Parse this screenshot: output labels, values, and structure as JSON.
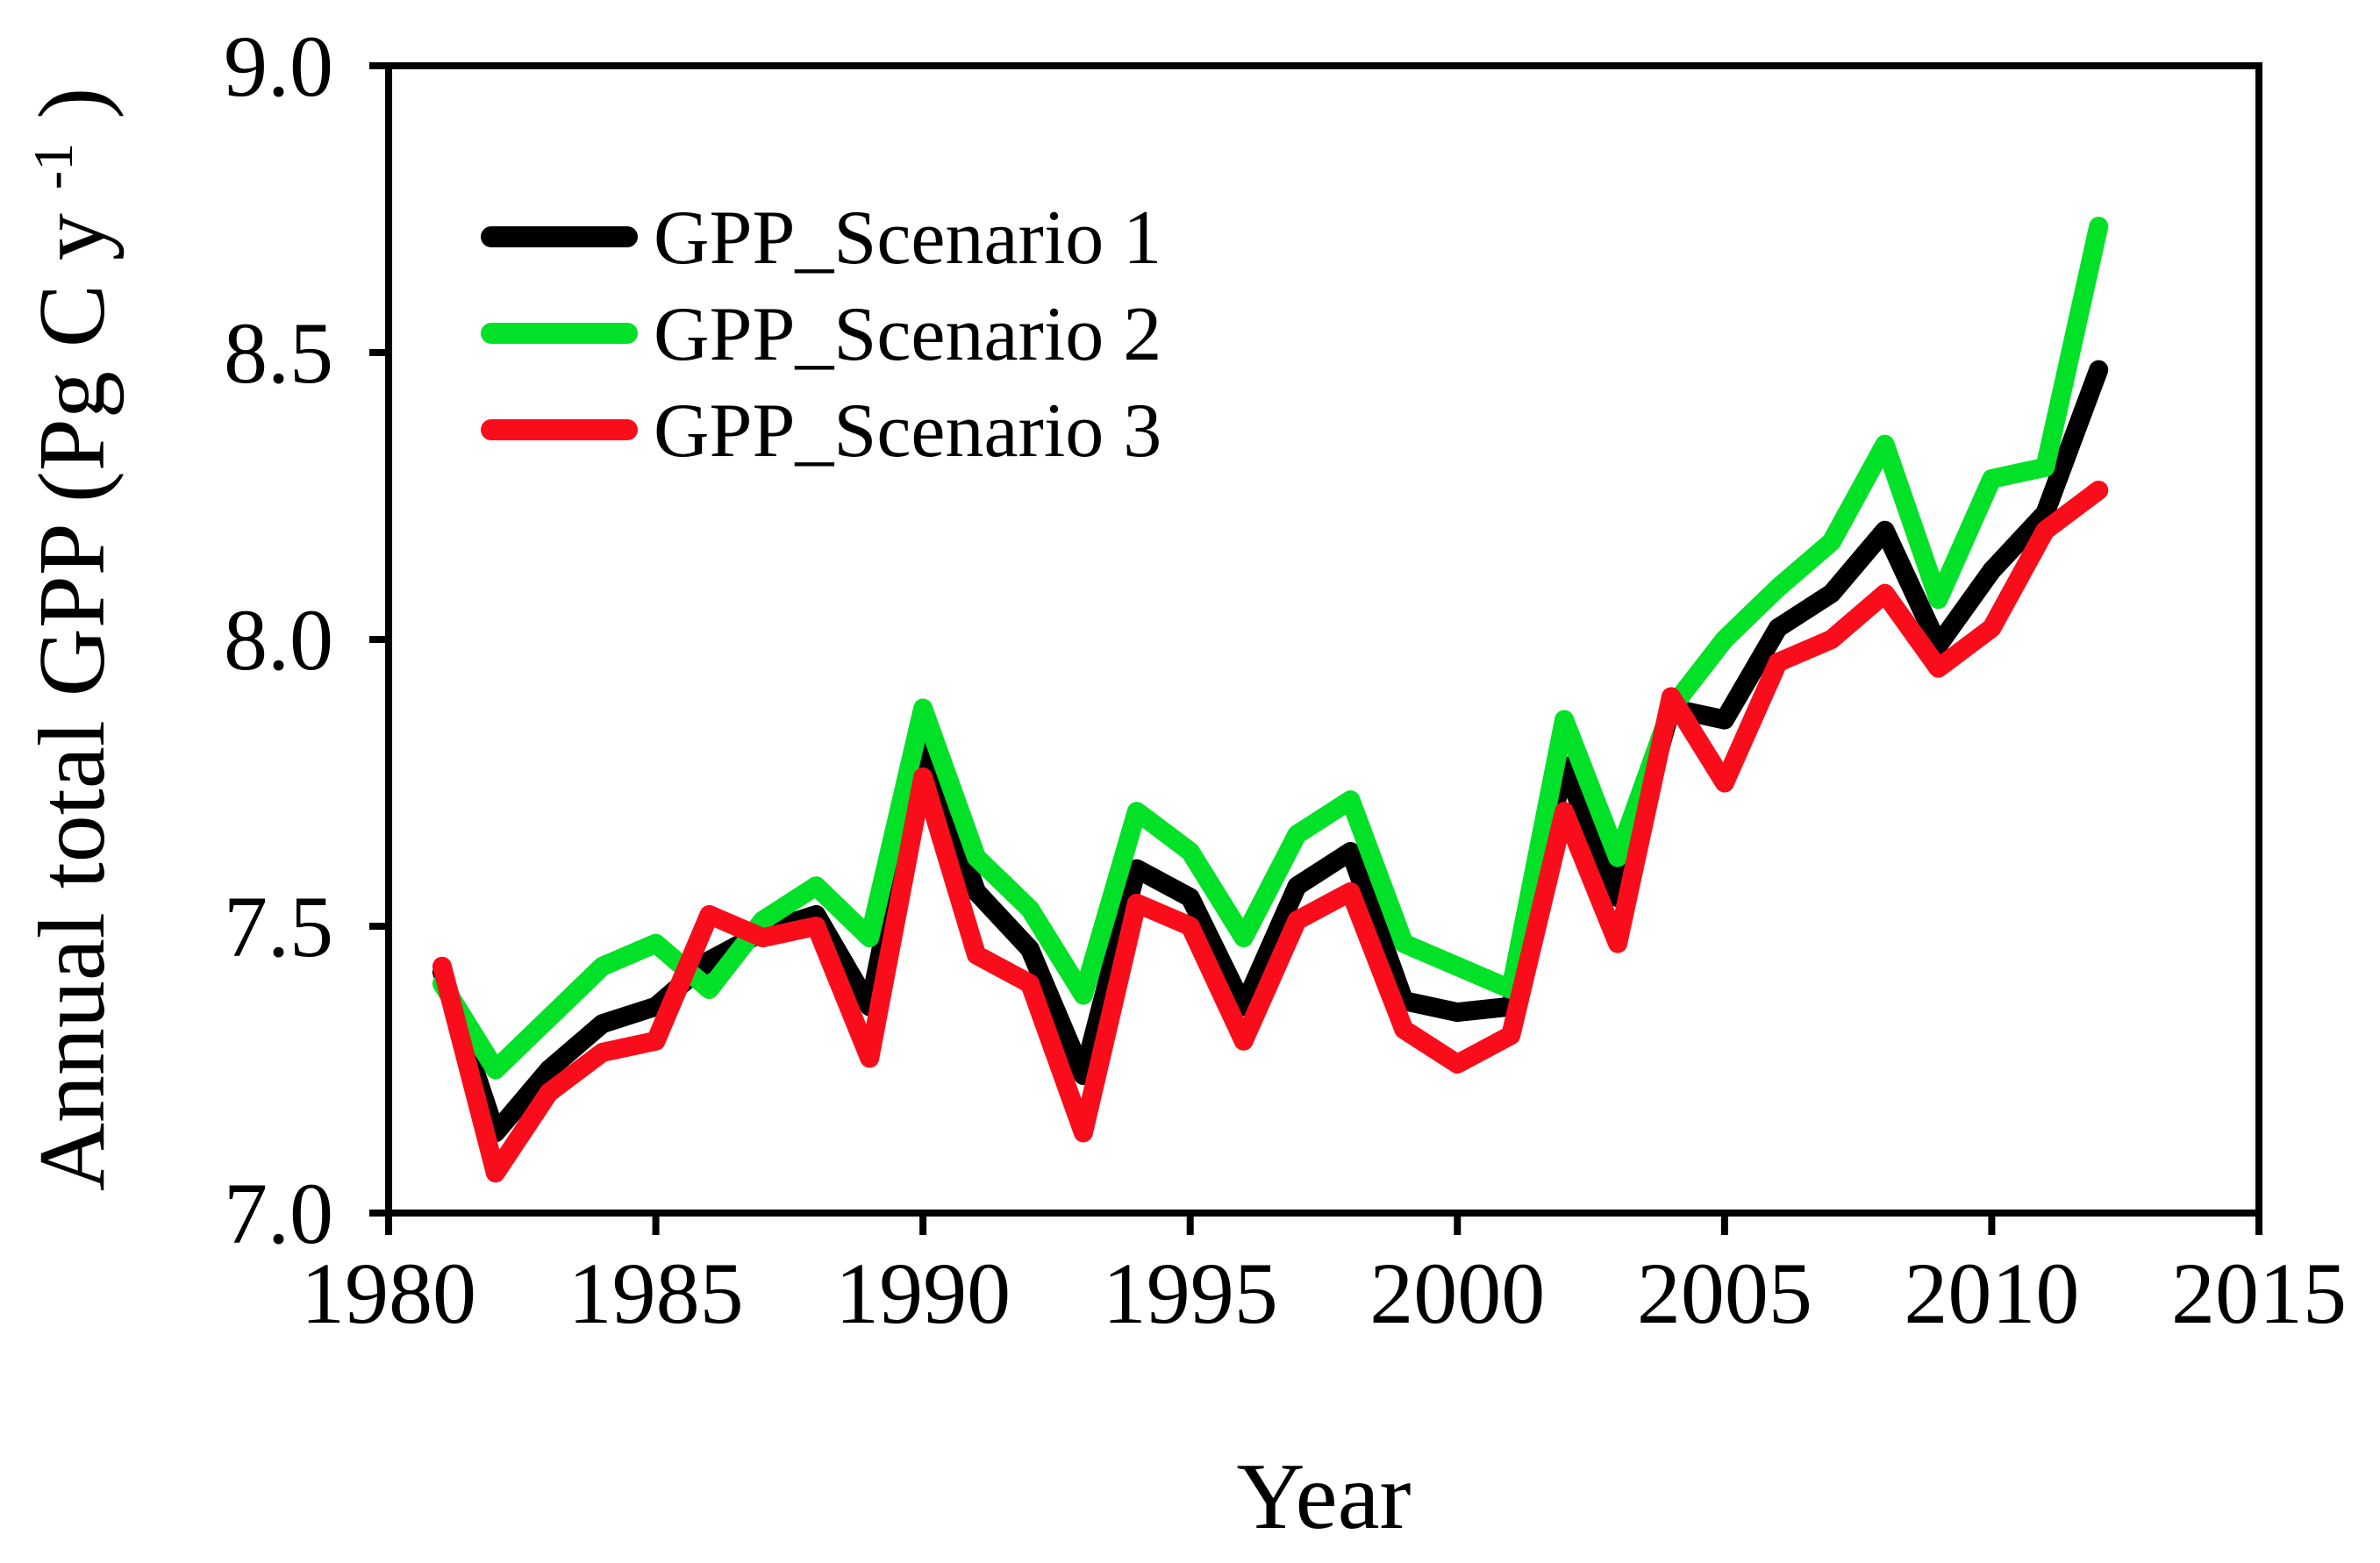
{
  "page": {
    "background": "#ffffff"
  },
  "chart_data": {
    "type": "line",
    "title": "",
    "xlabel": "Year",
    "ylabel": "Annual total GPP (Pg C y⁻¹)",
    "ylabel_parts": {
      "pre": "Annual total GPP (Pg C y",
      "sup": "-1",
      "post": ")"
    },
    "xlim": [
      1980,
      2015
    ],
    "ylim": [
      7.0,
      9.0
    ],
    "x_ticks": [
      1980,
      1985,
      1990,
      1995,
      2000,
      2005,
      2010,
      2015
    ],
    "y_ticks": [
      7.0,
      7.5,
      8.0,
      8.5,
      9.0
    ],
    "grid": false,
    "legend_position": "top-left-inside",
    "x": [
      1981,
      1982,
      1983,
      1984,
      1985,
      1986,
      1987,
      1988,
      1989,
      1990,
      1991,
      1992,
      1993,
      1994,
      1995,
      1996,
      1997,
      1998,
      1999,
      2000,
      2001,
      2002,
      2003,
      2004,
      2005,
      2006,
      2007,
      2008,
      2009,
      2010,
      2011,
      2012
    ],
    "series": [
      {
        "name": "GPP_Scenario 1",
        "color": "#000000",
        "values": [
          7.42,
          7.14,
          7.25,
          7.33,
          7.36,
          7.44,
          7.49,
          7.52,
          7.36,
          7.82,
          7.56,
          7.46,
          7.24,
          7.6,
          7.55,
          7.36,
          7.57,
          7.63,
          7.37,
          7.35,
          7.36,
          7.78,
          7.55,
          7.88,
          7.86,
          8.02,
          8.08,
          8.19,
          7.99,
          8.12,
          8.22,
          8.47
        ]
      },
      {
        "name": "GPP_Scenario 2",
        "color": "#00E128",
        "values": [
          7.4,
          7.25,
          7.34,
          7.43,
          7.47,
          7.39,
          7.51,
          7.57,
          7.48,
          7.88,
          7.62,
          7.53,
          7.38,
          7.7,
          7.63,
          7.48,
          7.66,
          7.72,
          7.47,
          7.43,
          7.39,
          7.86,
          7.62,
          7.88,
          8.0,
          8.09,
          8.17,
          8.34,
          8.07,
          8.28,
          8.3,
          8.72
        ]
      },
      {
        "name": "GPP_Scenario 3",
        "color": "#FA0D1B",
        "values": [
          7.43,
          7.07,
          7.21,
          7.28,
          7.3,
          7.52,
          7.48,
          7.5,
          7.27,
          7.76,
          7.45,
          7.4,
          7.14,
          7.54,
          7.5,
          7.3,
          7.51,
          7.56,
          7.32,
          7.26,
          7.31,
          7.7,
          7.47,
          7.9,
          7.75,
          7.96,
          8.0,
          8.08,
          7.95,
          8.02,
          8.19,
          8.26
        ]
      }
    ]
  }
}
